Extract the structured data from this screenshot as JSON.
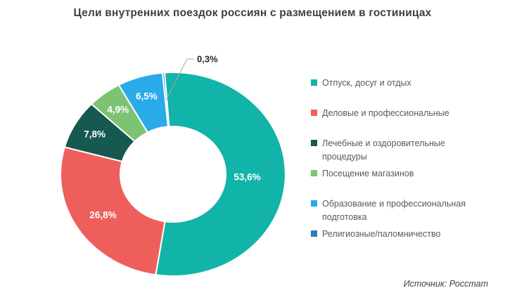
{
  "title": "Цели внутренних поездок россиян с размещением в гостиницах",
  "source": "Источник: Росстат",
  "chart_data": {
    "type": "pie",
    "subtype": "donut",
    "unit": "%",
    "legend_position": "right",
    "labels_color": "#ffffff",
    "callout_line_color": "#A6A6A6",
    "slices": [
      {
        "name": "Отпуск, досуг и отдых",
        "value": 53.6,
        "label": "53,6%",
        "color": "#12B3A8",
        "callout": false
      },
      {
        "name": "Деловые и профессиональные",
        "value": 26.8,
        "label": "26,8%",
        "color": "#EE5F5C",
        "callout": false
      },
      {
        "name": "Лечебные и оздоровительные процедуры",
        "value": 7.8,
        "label": "7,8%",
        "color": "#155950",
        "callout": false
      },
      {
        "name": "Посещение магазинов",
        "value": 4.9,
        "label": "4,9%",
        "color": "#7CC474",
        "callout": false
      },
      {
        "name": "Образование и профессиональная подготовка",
        "value": 6.5,
        "label": "6,5%",
        "color": "#29ABE9",
        "callout": false
      },
      {
        "name": "Религиозные/паломничество",
        "value": 0.3,
        "label": "0,3%",
        "color": "#2E7CB5",
        "callout": true
      }
    ]
  }
}
